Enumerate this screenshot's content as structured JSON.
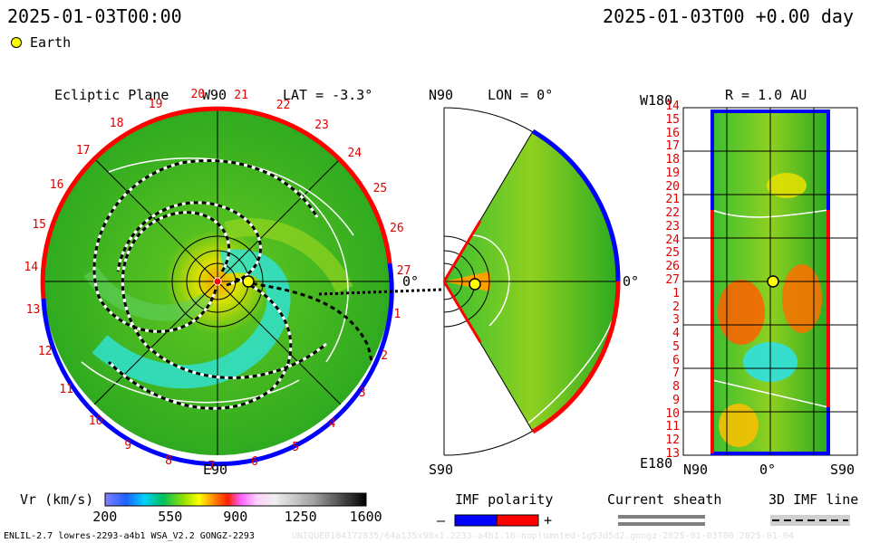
{
  "header": {
    "left_time": "2025-01-03T00:00",
    "right_time": "2025-01-03T00 +0.00 day",
    "earth_legend": "Earth"
  },
  "panel_ecliptic": {
    "title": "Ecliptic Plane",
    "top_label": "W90",
    "bottom_label": "E90",
    "lat_label": "LAT = -3.3°",
    "zero_label": "0°",
    "carrington_ticks": [
      "20",
      "21",
      "22",
      "23",
      "24",
      "25",
      "26",
      "27",
      "1",
      "2",
      "3",
      "4",
      "5",
      "6",
      "7",
      "8",
      "9",
      "10",
      "11",
      "12",
      "13",
      "14",
      "15",
      "16",
      "17",
      "18",
      "19"
    ]
  },
  "panel_meridional": {
    "top_label": "N90",
    "bottom_label": "S90",
    "lon_label": "LON = 0°",
    "zero_label": "0°"
  },
  "panel_radial": {
    "r_label": "R = 1.0 AU",
    "top_left": "W180",
    "bottom_left": "E180",
    "x_left": "N90",
    "x_mid": "0°",
    "x_right": "S90",
    "y_ticks": [
      "14",
      "15",
      "16",
      "17",
      "18",
      "19",
      "20",
      "21",
      "22",
      "23",
      "24",
      "25",
      "26",
      "27",
      "1",
      "2",
      "3",
      "4",
      "5",
      "6",
      "7",
      "8",
      "9",
      "10",
      "11",
      "12",
      "13"
    ]
  },
  "colorbar": {
    "title": "Vr (km/s)",
    "ticks": [
      "200",
      "550",
      "900",
      "1250",
      "1600"
    ],
    "range": [
      200,
      1600
    ]
  },
  "legends": {
    "imf_title": "IMF polarity",
    "imf_minus": "–",
    "imf_plus": "+",
    "sheath_title": "Current sheath",
    "imf3d_title": "3D IMF line"
  },
  "footer": {
    "left": "ENLIL-2.7 lowres-2293-a4b1 WSA_V2.2 GONGZ-2293",
    "right": "UNIQUE0104172835/64a135x90x1.2233-a4b1.16-noplumnted-1g53d5d2.gongz-2025-01-03T00   2025-01-04"
  },
  "colors": {
    "positive_polarity": "#ff0000",
    "negative_polarity": "#0000ff",
    "earth": "#ffff00"
  }
}
